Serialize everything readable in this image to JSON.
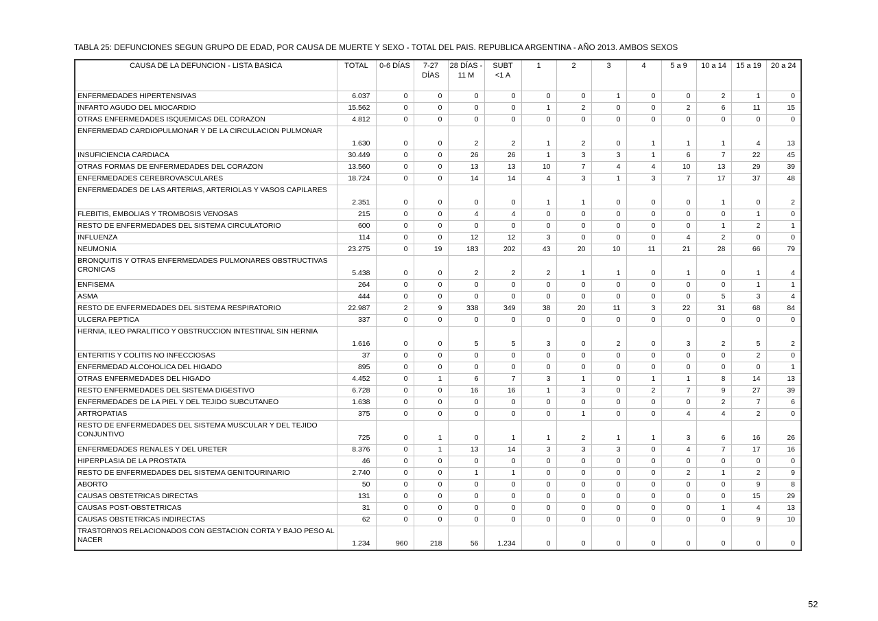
{
  "page": {
    "title": "TABLA 25: DEFUNCIONES SEGUN GRUPO DE EDAD, POR CAUSA DE MUERTE Y SEXO - TOTAL DEL PAIS. REPUBLICA ARGENTINA - AÑO 2013. AMBOS SEXOS",
    "page_number": "52"
  },
  "table": {
    "cause_header": "CAUSA DE LA DEFUNCION - LISTA BASICA",
    "columns": [
      {
        "line1": "TOTAL",
        "line2": ""
      },
      {
        "line1": "0-6 DÍAS",
        "line2": ""
      },
      {
        "line1": "7-27",
        "line2": "DÍAS"
      },
      {
        "line1": "28 DÍAS -",
        "line2": "11 M"
      },
      {
        "line1": "SUBT",
        "line2": "<1 A"
      },
      {
        "line1": "1",
        "line2": ""
      },
      {
        "line1": "2",
        "line2": ""
      },
      {
        "line1": "3",
        "line2": ""
      },
      {
        "line1": "4",
        "line2": ""
      },
      {
        "line1": "5 a 9",
        "line2": ""
      },
      {
        "line1": "10 a 14",
        "line2": ""
      },
      {
        "line1": "15 a 19",
        "line2": ""
      },
      {
        "line1": "20 a 24",
        "line2": ""
      }
    ],
    "rows": [
      {
        "cause": "ENFERMEDADES HIPERTENSIVAS",
        "tall": false,
        "values": [
          "6.037",
          "0",
          "0",
          "0",
          "0",
          "0",
          "0",
          "1",
          "0",
          "0",
          "2",
          "1",
          "0"
        ]
      },
      {
        "cause": "INFARTO AGUDO DEL MIOCARDIO",
        "tall": false,
        "values": [
          "15.562",
          "0",
          "0",
          "0",
          "0",
          "1",
          "2",
          "0",
          "0",
          "2",
          "6",
          "11",
          "15"
        ]
      },
      {
        "cause": "OTRAS ENFERMEDADES ISQUEMICAS DEL CORAZON",
        "tall": false,
        "values": [
          "4.812",
          "0",
          "0",
          "0",
          "0",
          "0",
          "0",
          "0",
          "0",
          "0",
          "0",
          "0",
          "0"
        ]
      },
      {
        "cause": "ENFERMEDAD CARDIOPULMONAR Y DE LA CIRCULACION PULMONAR",
        "tall": true,
        "values": [
          "1.630",
          "0",
          "0",
          "2",
          "2",
          "1",
          "2",
          "0",
          "1",
          "1",
          "1",
          "4",
          "13"
        ]
      },
      {
        "cause": "INSUFICIENCIA CARDIACA",
        "tall": false,
        "values": [
          "30.449",
          "0",
          "0",
          "26",
          "26",
          "1",
          "3",
          "3",
          "1",
          "6",
          "7",
          "22",
          "45"
        ]
      },
      {
        "cause": "OTRAS FORMAS DE ENFERMEDADES DEL CORAZON",
        "tall": false,
        "values": [
          "13.560",
          "0",
          "0",
          "13",
          "13",
          "10",
          "7",
          "4",
          "4",
          "10",
          "13",
          "29",
          "39"
        ]
      },
      {
        "cause": "ENFERMEDADES CEREBROVASCULARES",
        "tall": false,
        "values": [
          "18.724",
          "0",
          "0",
          "14",
          "14",
          "4",
          "3",
          "1",
          "3",
          "7",
          "17",
          "37",
          "48"
        ]
      },
      {
        "cause": "ENFERMEDADES DE LAS ARTERIAS, ARTERIOLAS Y VASOS CAPILARES",
        "tall": true,
        "values": [
          "2.351",
          "0",
          "0",
          "0",
          "0",
          "1",
          "1",
          "0",
          "0",
          "0",
          "1",
          "0",
          "2"
        ]
      },
      {
        "cause": "FLEBITIS, EMBOLIAS Y TROMBOSIS VENOSAS",
        "tall": false,
        "values": [
          "215",
          "0",
          "0",
          "4",
          "4",
          "0",
          "0",
          "0",
          "0",
          "0",
          "0",
          "1",
          "0"
        ]
      },
      {
        "cause": "RESTO DE ENFERMEDADES DEL SISTEMA CIRCULATORIO",
        "tall": false,
        "values": [
          "600",
          "0",
          "0",
          "0",
          "0",
          "0",
          "0",
          "0",
          "0",
          "0",
          "1",
          "2",
          "1"
        ]
      },
      {
        "cause": "INFLUENZA",
        "tall": false,
        "values": [
          "114",
          "0",
          "0",
          "12",
          "12",
          "3",
          "0",
          "0",
          "0",
          "4",
          "2",
          "0",
          "0"
        ]
      },
      {
        "cause": "NEUMONIA",
        "tall": false,
        "values": [
          "23.275",
          "0",
          "19",
          "183",
          "202",
          "43",
          "20",
          "10",
          "11",
          "21",
          "28",
          "66",
          "79"
        ]
      },
      {
        "cause": "BRONQUITIS Y OTRAS ENFERMEDADES PULMONARES OBSTRUCTIVAS CRONICAS",
        "tall": true,
        "values": [
          "5.438",
          "0",
          "0",
          "2",
          "2",
          "2",
          "1",
          "1",
          "0",
          "1",
          "0",
          "1",
          "4"
        ]
      },
      {
        "cause": "ENFISEMA",
        "tall": false,
        "values": [
          "264",
          "0",
          "0",
          "0",
          "0",
          "0",
          "0",
          "0",
          "0",
          "0",
          "0",
          "1",
          "1"
        ]
      },
      {
        "cause": "ASMA",
        "tall": false,
        "values": [
          "444",
          "0",
          "0",
          "0",
          "0",
          "0",
          "0",
          "0",
          "0",
          "0",
          "5",
          "3",
          "4"
        ]
      },
      {
        "cause": "RESTO DE ENFERMEDADES DEL SISTEMA RESPIRATORIO",
        "tall": false,
        "values": [
          "22.987",
          "2",
          "9",
          "338",
          "349",
          "38",
          "20",
          "11",
          "3",
          "22",
          "31",
          "68",
          "84"
        ]
      },
      {
        "cause": "ULCERA PEPTICA",
        "tall": false,
        "values": [
          "337",
          "0",
          "0",
          "0",
          "0",
          "0",
          "0",
          "0",
          "0",
          "0",
          "0",
          "0",
          "0"
        ]
      },
      {
        "cause": "HERNIA, ILEO PARALITICO Y OBSTRUCCION INTESTINAL SIN HERNIA",
        "tall": true,
        "values": [
          "1.616",
          "0",
          "0",
          "5",
          "5",
          "3",
          "0",
          "2",
          "0",
          "3",
          "2",
          "5",
          "2"
        ]
      },
      {
        "cause": "ENTERITIS Y COLITIS NO INFECCIOSAS",
        "tall": false,
        "values": [
          "37",
          "0",
          "0",
          "0",
          "0",
          "0",
          "0",
          "0",
          "0",
          "0",
          "0",
          "2",
          "0"
        ]
      },
      {
        "cause": "ENFERMEDAD ALCOHOLICA DEL HIGADO",
        "tall": false,
        "values": [
          "895",
          "0",
          "0",
          "0",
          "0",
          "0",
          "0",
          "0",
          "0",
          "0",
          "0",
          "0",
          "1"
        ]
      },
      {
        "cause": "OTRAS ENFERMEDADES DEL HIGADO",
        "tall": false,
        "values": [
          "4.452",
          "0",
          "1",
          "6",
          "7",
          "3",
          "1",
          "0",
          "1",
          "1",
          "8",
          "14",
          "13"
        ]
      },
      {
        "cause": "RESTO ENFERMEDADES DEL SISTEMA DIGESTIVO",
        "tall": false,
        "values": [
          "6.728",
          "0",
          "0",
          "16",
          "16",
          "1",
          "3",
          "0",
          "2",
          "7",
          "9",
          "27",
          "39"
        ]
      },
      {
        "cause": "ENFERMEDADES DE LA PIEL Y DEL TEJIDO SUBCUTANEO",
        "tall": false,
        "values": [
          "1.638",
          "0",
          "0",
          "0",
          "0",
          "0",
          "0",
          "0",
          "0",
          "0",
          "2",
          "7",
          "6"
        ]
      },
      {
        "cause": "ARTROPATIAS",
        "tall": false,
        "values": [
          "375",
          "0",
          "0",
          "0",
          "0",
          "0",
          "1",
          "0",
          "0",
          "4",
          "4",
          "2",
          "0"
        ]
      },
      {
        "cause": "RESTO DE ENFERMEDADES DEL SISTEMA MUSCULAR Y DEL TEJIDO CONJUNTIVO",
        "tall": true,
        "values": [
          "725",
          "0",
          "1",
          "0",
          "1",
          "1",
          "2",
          "1",
          "1",
          "3",
          "6",
          "16",
          "26"
        ]
      },
      {
        "cause": "ENFERMEDADES RENALES Y DEL URETER",
        "tall": false,
        "values": [
          "8.376",
          "0",
          "1",
          "13",
          "14",
          "3",
          "3",
          "3",
          "0",
          "4",
          "7",
          "17",
          "16"
        ]
      },
      {
        "cause": "HIPERPLASIA DE LA PROSTATA",
        "tall": false,
        "values": [
          "46",
          "0",
          "0",
          "0",
          "0",
          "0",
          "0",
          "0",
          "0",
          "0",
          "0",
          "0",
          "0"
        ]
      },
      {
        "cause": "RESTO DE ENFERMEDADES DEL SISTEMA GENITOURINARIO",
        "tall": false,
        "values": [
          "2.740",
          "0",
          "0",
          "1",
          "1",
          "0",
          "0",
          "0",
          "0",
          "2",
          "1",
          "2",
          "9"
        ]
      },
      {
        "cause": "ABORTO",
        "tall": false,
        "values": [
          "50",
          "0",
          "0",
          "0",
          "0",
          "0",
          "0",
          "0",
          "0",
          "0",
          "0",
          "9",
          "8"
        ]
      },
      {
        "cause": "CAUSAS OBSTETRICAS DIRECTAS",
        "tall": false,
        "values": [
          "131",
          "0",
          "0",
          "0",
          "0",
          "0",
          "0",
          "0",
          "0",
          "0",
          "0",
          "15",
          "29"
        ]
      },
      {
        "cause": "CAUSAS POST-OBSTETRICAS",
        "tall": false,
        "values": [
          "31",
          "0",
          "0",
          "0",
          "0",
          "0",
          "0",
          "0",
          "0",
          "0",
          "1",
          "4",
          "13"
        ]
      },
      {
        "cause": "CAUSAS OBSTETRICAS INDIRECTAS",
        "tall": false,
        "values": [
          "62",
          "0",
          "0",
          "0",
          "0",
          "0",
          "0",
          "0",
          "0",
          "0",
          "0",
          "9",
          "10"
        ]
      },
      {
        "cause": "TRASTORNOS RELACIONADOS CON GESTACION CORTA Y BAJO PESO AL NACER",
        "tall": true,
        "values": [
          "1.234",
          "960",
          "218",
          "56",
          "1.234",
          "0",
          "0",
          "0",
          "0",
          "0",
          "0",
          "0",
          "0"
        ]
      }
    ]
  }
}
